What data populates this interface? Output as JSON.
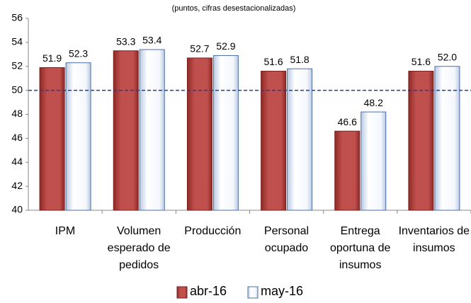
{
  "chart_data": {
    "type": "bar",
    "subtitle": "(puntos, cifras desestacionalizadas)",
    "categories": [
      "IPM",
      "Volumen esperado de pedidos",
      "Producción",
      "Personal ocupado",
      "Entrega oportuna de insumos",
      "Inventarios de insumos"
    ],
    "series": [
      {
        "name": "abr-16",
        "color": "#c0504d",
        "values": [
          51.9,
          53.3,
          52.7,
          51.6,
          46.6,
          51.6
        ],
        "value_labels": [
          "51.9",
          "53.3",
          "52.7",
          "51.6",
          "46.6",
          "51.6"
        ]
      },
      {
        "name": "may-16",
        "color": "#e4ecf7",
        "values": [
          52.3,
          53.4,
          52.9,
          51.8,
          48.2,
          52.0
        ],
        "value_labels": [
          "52.3",
          "53.4",
          "52.9",
          "51.8",
          "48.2",
          "52.0"
        ]
      }
    ],
    "ylim": [
      40,
      56
    ],
    "yticks": [
      40,
      42,
      44,
      46,
      48,
      50,
      52,
      54,
      56
    ],
    "reference_line": 50,
    "reference_color": "#1f3f8f",
    "legend": "bottom"
  }
}
